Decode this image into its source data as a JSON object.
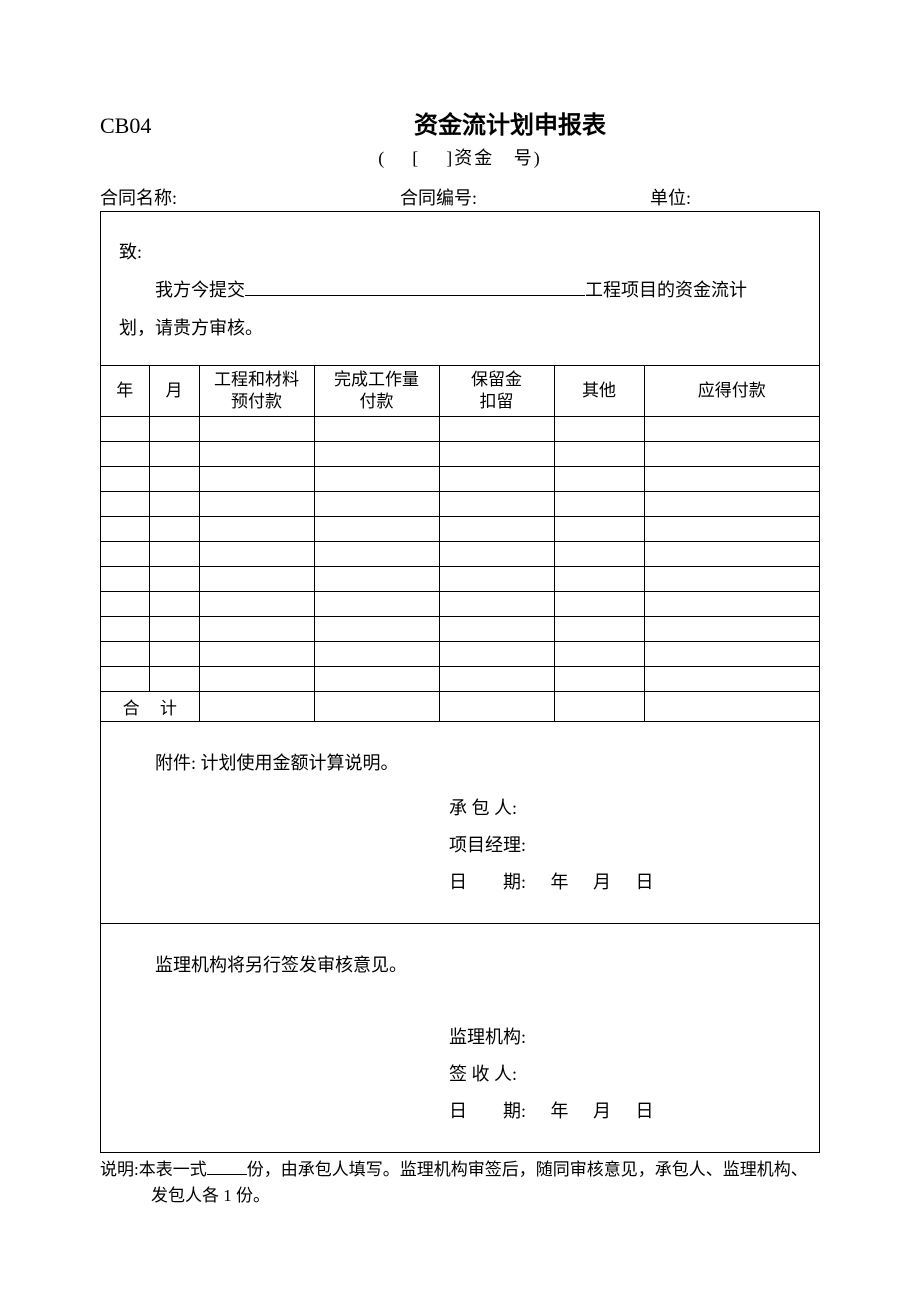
{
  "form_code": "CB04",
  "title": "资金流计划申报表",
  "subtitle_prefix": "(",
  "subtitle_bracket_l": "[",
  "subtitle_bracket_r": "]资金",
  "subtitle_suffix": "号)",
  "header": {
    "contract_name_label": "合同名称:",
    "contract_no_label": "合同编号:",
    "unit_label": "单位:"
  },
  "intro": {
    "line1": "致:",
    "line2_prefix": "我方今提交",
    "line2_suffix": "工程项目的资金流计",
    "line3": "划，请贵方审核。"
  },
  "table": {
    "columns": [
      "年",
      "月",
      "工程和材料\n预付款",
      "完成工作量\n付款",
      "保留金\n扣留",
      "其他",
      "应得付款"
    ],
    "col_classes": [
      "c-year",
      "c-month",
      "c-prepay",
      "c-workload",
      "c-retention",
      "c-other",
      "c-payable"
    ],
    "row_count": 11,
    "total_label": "合 计"
  },
  "section1": {
    "attachment": "附件: 计划使用金额计算说明。",
    "contractor_label": "承 包 人:",
    "pm_label": "项目经理:",
    "date_label": "日　　期:",
    "year": "年",
    "month": "月",
    "day": "日"
  },
  "section2": {
    "opinion": "监理机构将另行签发审核意见。",
    "supervisor_label": "监理机构:",
    "receiver_label": "签 收 人:",
    "date_label": "日　　期:",
    "year": "年",
    "month": "月",
    "day": "日"
  },
  "footnote": {
    "line1_prefix": "说明:本表一式",
    "line1_suffix": "份，由承包人填写。监理机构审签后，随同审核意见，承包人、监理机构、",
    "line2": "发包人各 1 份。"
  },
  "styling": {
    "border_color": "#000000",
    "background_color": "#ffffff",
    "font": "SimSun",
    "body_fontsize": 18,
    "title_fontsize": 24,
    "code_fontsize": 22
  }
}
